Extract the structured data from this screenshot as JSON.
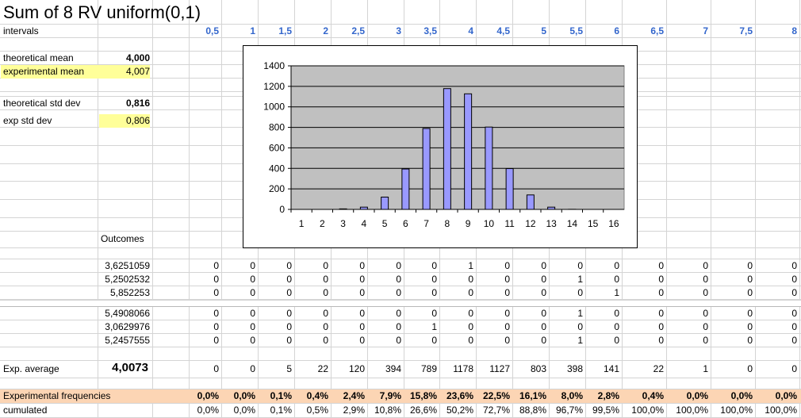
{
  "title": "Sum of 8 RV uniform(0,1)",
  "labels": {
    "intervals": "intervals",
    "theoretical_mean": "theoretical mean",
    "experimental_mean": "experimental mean",
    "theoretical_std": "theoretical std dev",
    "exp_std": "exp std dev",
    "outcomes": "Outcomes",
    "exp_average": "Exp. average",
    "exp_frequencies": "Experimental frequencies",
    "cumulated": "cumulated"
  },
  "values": {
    "theoretical_mean": "4,000",
    "experimental_mean": "4,007",
    "theoretical_std": "0,816",
    "exp_std": "0,806",
    "exp_average": "4,0073"
  },
  "intervals": [
    "0,5",
    "1",
    "1,5",
    "2",
    "2,5",
    "3",
    "3,5",
    "4",
    "4,5",
    "5",
    "5,5",
    "6",
    "6,5",
    "7",
    "7,5",
    "8"
  ],
  "outcome_rows": [
    {
      "label": "3,6251059",
      "cells": [
        "0",
        "0",
        "0",
        "0",
        "0",
        "0",
        "0",
        "1",
        "0",
        "0",
        "0",
        "0",
        "0",
        "0",
        "0",
        "0"
      ]
    },
    {
      "label": "5,2502532",
      "cells": [
        "0",
        "0",
        "0",
        "0",
        "0",
        "0",
        "0",
        "0",
        "0",
        "0",
        "1",
        "0",
        "0",
        "0",
        "0",
        "0"
      ]
    },
    {
      "label": "5,852253",
      "cells": [
        "0",
        "0",
        "0",
        "0",
        "0",
        "0",
        "0",
        "0",
        "0",
        "0",
        "0",
        "1",
        "0",
        "0",
        "0",
        "0"
      ]
    },
    {
      "label": "5,4908066",
      "cells": [
        "0",
        "0",
        "0",
        "0",
        "0",
        "0",
        "0",
        "0",
        "0",
        "0",
        "1",
        "0",
        "0",
        "0",
        "0",
        "0"
      ]
    },
    {
      "label": "3,0629976",
      "cells": [
        "0",
        "0",
        "0",
        "0",
        "0",
        "0",
        "1",
        "0",
        "0",
        "0",
        "0",
        "0",
        "0",
        "0",
        "0",
        "0"
      ]
    },
    {
      "label": "5,2457555",
      "cells": [
        "0",
        "0",
        "0",
        "0",
        "0",
        "0",
        "0",
        "0",
        "0",
        "0",
        "1",
        "0",
        "0",
        "0",
        "0",
        "0"
      ]
    }
  ],
  "averages": [
    "0",
    "0",
    "5",
    "22",
    "120",
    "394",
    "789",
    "1178",
    "1127",
    "803",
    "398",
    "141",
    "22",
    "1",
    "0",
    "0"
  ],
  "frequencies": [
    "0,0%",
    "0,0%",
    "0,1%",
    "0,4%",
    "2,4%",
    "7,9%",
    "15,8%",
    "23,6%",
    "22,5%",
    "16,1%",
    "8,0%",
    "2,8%",
    "0,4%",
    "0,0%",
    "0,0%",
    "0,0%"
  ],
  "cumulated": [
    "0,0%",
    "0,0%",
    "0,1%",
    "0,5%",
    "2,9%",
    "10,8%",
    "26,6%",
    "50,2%",
    "72,7%",
    "88,8%",
    "96,7%",
    "99,5%",
    "100,0%",
    "100,0%",
    "100,0%",
    "100,0%"
  ],
  "colors": {
    "bar": "#9999ff",
    "plot_bg": "#c0c0c0",
    "header_blue": "#3366cc",
    "yellow": "#ffff99",
    "orange": "#fcd5b4"
  },
  "chart_data": {
    "type": "bar",
    "categories": [
      "1",
      "2",
      "3",
      "4",
      "5",
      "6",
      "7",
      "8",
      "9",
      "10",
      "11",
      "12",
      "13",
      "14",
      "15",
      "16"
    ],
    "values": [
      0,
      0,
      5,
      22,
      120,
      394,
      789,
      1178,
      1127,
      803,
      398,
      141,
      22,
      1,
      0,
      0
    ],
    "title": "",
    "xlabel": "",
    "ylabel": "",
    "ylim": [
      0,
      1400
    ],
    "yticks": [
      "0",
      "200",
      "400",
      "600",
      "800",
      "1000",
      "1200",
      "1400"
    ],
    "grid": true,
    "legend": "none"
  }
}
